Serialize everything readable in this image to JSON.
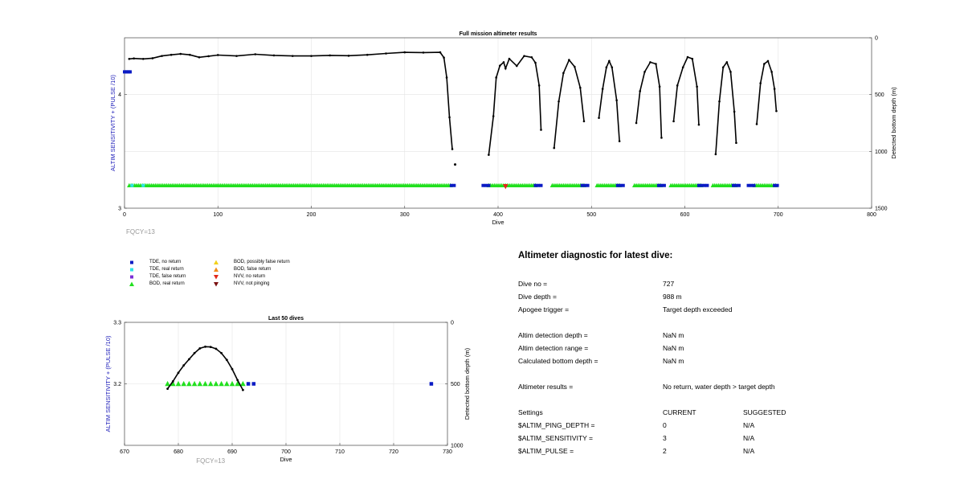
{
  "chart_data": [
    {
      "type": "scatter",
      "title": "Full mission altimeter results",
      "xlabel": "Dive",
      "ylabel_left": "ALTIM SENSITIVITY + (PULSE /10)",
      "ylabel_right": "Detected bottom depth (m)",
      "xlim": [
        0,
        800
      ],
      "ylim_left": [
        3,
        4.5
      ],
      "ylim_right": [
        0,
        1500
      ],
      "right_axis_reversed": true,
      "x_ticks": [
        "0",
        "100",
        "200",
        "300",
        "400",
        "500",
        "600",
        "700",
        "800"
      ],
      "y_ticks_left": [
        "3",
        "4"
      ],
      "y_ticks_right": [
        "0",
        "500",
        "1000",
        "1500"
      ],
      "grid": true,
      "annotation": "FQCY=13",
      "tde_setting": {
        "x": [
          0,
          6
        ],
        "y": 4.2
      },
      "bottom_depth_segments": [
        {
          "name": "",
          "points": [
            [
              5,
              186
            ],
            [
              10,
              182
            ],
            [
              20,
              186
            ],
            [
              30,
              180
            ],
            [
              40,
              160
            ],
            [
              50,
              150
            ],
            [
              60,
              142
            ],
            [
              70,
              150
            ],
            [
              80,
              172
            ],
            [
              90,
              162
            ],
            [
              100,
              152
            ],
            [
              120,
              160
            ],
            [
              140,
              145
            ],
            [
              160,
              155
            ],
            [
              180,
              160
            ],
            [
              200,
              160
            ],
            [
              220,
              155
            ],
            [
              240,
              158
            ],
            [
              260,
              150
            ],
            [
              280,
              138
            ],
            [
              300,
              128
            ],
            [
              320,
              130
            ],
            [
              338,
              128
            ],
            [
              342,
              175
            ],
            [
              345,
              350
            ],
            [
              348,
              700
            ],
            [
              351,
              980
            ]
          ]
        },
        {
          "name": "",
          "points": [
            [
              390,
              1030
            ],
            [
              395,
              690
            ],
            [
              398,
              350
            ],
            [
              402,
              245
            ],
            [
              406,
              215
            ],
            [
              408,
              270
            ],
            [
              412,
              185
            ],
            [
              420,
              248
            ],
            [
              428,
              160
            ],
            [
              436,
              172
            ],
            [
              440,
              220
            ],
            [
              444,
              420
            ],
            [
              446,
              810
            ]
          ]
        },
        {
          "name": "",
          "points": [
            [
              460,
              970
            ],
            [
              465,
              560
            ],
            [
              470,
              310
            ],
            [
              476,
              195
            ],
            [
              482,
              255
            ],
            [
              488,
              440
            ],
            [
              492,
              735
            ]
          ]
        },
        {
          "name": "",
          "points": [
            [
              508,
              705
            ],
            [
              512,
              450
            ],
            [
              516,
              260
            ],
            [
              519,
              205
            ],
            [
              522,
              260
            ],
            [
              527,
              550
            ],
            [
              530,
              910
            ]
          ]
        },
        {
          "name": "",
          "points": [
            [
              548,
              750
            ],
            [
              552,
              470
            ],
            [
              557,
              300
            ],
            [
              563,
              215
            ],
            [
              569,
              230
            ],
            [
              573,
              430
            ],
            [
              575,
              880
            ]
          ]
        },
        {
          "name": "",
          "points": [
            [
              588,
              735
            ],
            [
              592,
              420
            ],
            [
              598,
              260
            ],
            [
              603,
              170
            ],
            [
              608,
              185
            ],
            [
              613,
              430
            ],
            [
              615,
              765
            ]
          ]
        },
        {
          "name": "",
          "points": [
            [
              633,
              1025
            ],
            [
              637,
              560
            ],
            [
              641,
              260
            ],
            [
              645,
              215
            ],
            [
              649,
              300
            ],
            [
              653,
              650
            ],
            [
              655,
              925
            ]
          ]
        },
        {
          "name": "",
          "points": [
            [
              677,
              760
            ],
            [
              681,
              400
            ],
            [
              685,
              230
            ],
            [
              689,
              205
            ],
            [
              693,
              300
            ],
            [
              696,
              450
            ],
            [
              698,
              645
            ]
          ]
        }
      ],
      "outlier_point": [
        354,
        1115
      ],
      "sensitivity_level": 3.2,
      "real_return_ranges": [
        [
          5,
          350
        ],
        [
          390,
          440
        ],
        [
          458,
          492
        ],
        [
          506,
          530
        ],
        [
          546,
          575
        ],
        [
          585,
          618
        ],
        [
          630,
          655
        ],
        [
          675,
          698
        ]
      ],
      "no_return_ranges": [
        [
          350,
          354
        ],
        [
          384,
          392
        ],
        [
          440,
          447
        ],
        [
          490,
          496
        ],
        [
          528,
          534
        ],
        [
          572,
          578
        ],
        [
          615,
          625
        ],
        [
          652,
          660
        ],
        [
          668,
          676
        ],
        [
          696,
          700
        ]
      ],
      "nvv_no_return": [
        408
      ],
      "colors": {
        "depth": "#000000",
        "real_return": "#22e01f",
        "no_return": "#0b1bc4",
        "tde_real": "#2ee4e4",
        "nvv_no_return": "#e2281a",
        "axis_left_label": "#1a1ab8"
      }
    },
    {
      "type": "scatter",
      "title": "Last 50 dives",
      "xlabel": "Dive",
      "ylabel_left": "ALTIM SENSITIVITY + (PULSE /10)",
      "ylabel_right": "Detected bottom depth (m)",
      "xlim": [
        670,
        730
      ],
      "ylim_left": [
        3.1,
        3.3
      ],
      "ylim_right": [
        0,
        1000
      ],
      "right_axis_reversed": true,
      "x_ticks": [
        "670",
        "680",
        "690",
        "700",
        "710",
        "720",
        "730"
      ],
      "y_ticks_left": [
        "3.2",
        "3.3"
      ],
      "y_ticks_right": [
        "0",
        "500",
        "1000"
      ],
      "grid": true,
      "annotation": "FQCY=13",
      "depth_points": [
        [
          678,
          540
        ],
        [
          679,
          480
        ],
        [
          680,
          410
        ],
        [
          681,
          350
        ],
        [
          682,
          300
        ],
        [
          683,
          250
        ],
        [
          684,
          212
        ],
        [
          685,
          198
        ],
        [
          686,
          200
        ],
        [
          687,
          215
        ],
        [
          688,
          250
        ],
        [
          689,
          305
        ],
        [
          690,
          380
        ],
        [
          691,
          470
        ],
        [
          692,
          550
        ]
      ],
      "bod_real_x": [
        678,
        679,
        680,
        681,
        682,
        683,
        684,
        685,
        686,
        687,
        688,
        689,
        690,
        691,
        692
      ],
      "tde_no_return_x": [
        693,
        694,
        727
      ],
      "sensitivity_level": 3.2
    }
  ],
  "legend": {
    "col1": [
      "TDE, no return",
      "TDE, real return",
      "TDE, false return",
      "BOD, real return"
    ],
    "col2": [
      "BOD, possibly false return",
      "BOD, false return",
      "NVV, no return",
      "NVV, not pinging"
    ],
    "colors": {
      "tde_no_return": "#0b1bc4",
      "tde_real_return": "#2ee4e4",
      "tde_false_return": "#7b2fd6",
      "bod_real_return": "#22e01f",
      "bod_possibly_false": "#f2d21b",
      "bod_false_return": "#f08a1a",
      "nvv_no_return": "#e2281a",
      "nvv_not_pinging": "#7a1010"
    }
  },
  "diagnostic": {
    "title": "Altimeter diagnostic for latest dive:",
    "rows": [
      {
        "label": "Dive no =",
        "value": "727",
        "extra": ""
      },
      {
        "label": "Dive depth =",
        "value": "988 m",
        "extra": ""
      },
      {
        "label": "Apogee trigger =",
        "value": "Target depth exceeded",
        "extra": ""
      },
      {
        "label": "Altim detection depth =",
        "value": "NaN m",
        "extra": ""
      },
      {
        "label": "Altim detection range =",
        "value": "NaN m",
        "extra": ""
      },
      {
        "label": "Calculated bottom depth =",
        "value": "NaN m",
        "extra": ""
      },
      {
        "label": "Altimeter results =",
        "value": "No return, water depth > target depth",
        "extra": ""
      },
      {
        "label": "Settings",
        "value": "CURRENT",
        "extra": "SUGGESTED"
      },
      {
        "label": "$ALTIM_PING_DEPTH =",
        "value": "0",
        "extra": "N/A"
      },
      {
        "label": "$ALTIM_SENSITIVITY =",
        "value": "3",
        "extra": "N/A"
      },
      {
        "label": "$ALTIM_PULSE =",
        "value": "2",
        "extra": "N/A"
      }
    ]
  }
}
